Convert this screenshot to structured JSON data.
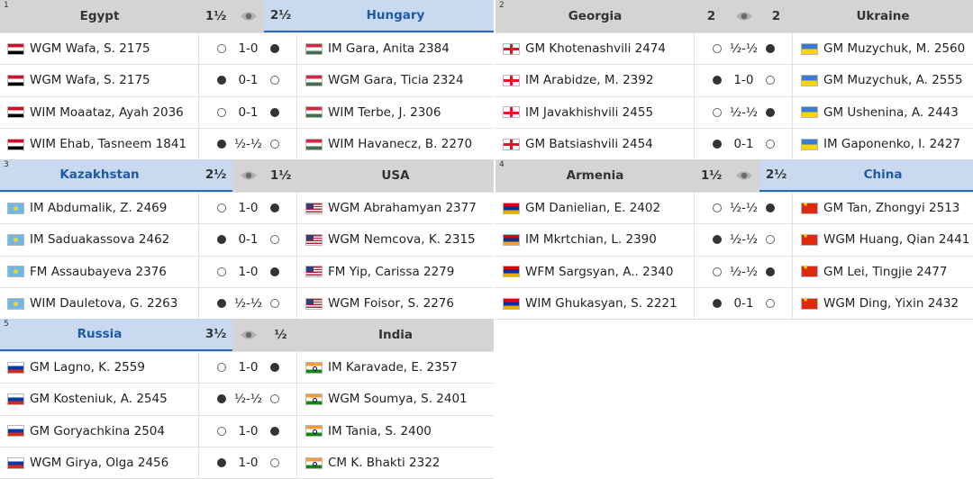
{
  "matches": [
    {
      "number": "1",
      "team1": {
        "name": "Egypt",
        "flag": "egypt",
        "score": "1½",
        "winner": false
      },
      "team2": {
        "name": "Hungary",
        "flag": "hungary",
        "score": "2½",
        "winner": true
      },
      "boards": [
        {
          "p1": "WGM Wafa, S. 2175",
          "p1_color": "white",
          "result": "1-0",
          "p2": "IM Gara, Anita 2384",
          "p2_color": "black"
        },
        {
          "p1": "WGM Wafa, S. 2175",
          "p1_color": "black",
          "result": "0-1",
          "p2": "WGM Gara, Ticia 2324",
          "p2_color": "white"
        },
        {
          "p1": "WIM Moaataz, Ayah 2036",
          "p1_color": "white",
          "result": "0-1",
          "p2": "WIM Terbe, J. 2306",
          "p2_color": "black"
        },
        {
          "p1": "WIM Ehab, Tasneem 1841",
          "p1_color": "black",
          "result": "½-½",
          "p2": "WIM Havanecz, B. 2270",
          "p2_color": "white"
        }
      ]
    },
    {
      "number": "2",
      "team1": {
        "name": "Georgia",
        "flag": "georgia",
        "score": "2",
        "winner": false
      },
      "team2": {
        "name": "Ukraine",
        "flag": "ukraine",
        "score": "2",
        "winner": false
      },
      "boards": [
        {
          "p1": "GM Khotenashvili 2474",
          "p1_color": "white",
          "result": "½-½",
          "p2": "GM Muzychuk, M. 2560",
          "p2_color": "black"
        },
        {
          "p1": "IM Arabidze, M. 2392",
          "p1_color": "black",
          "result": "1-0",
          "p2": "GM Muzychuk, A. 2555",
          "p2_color": "white"
        },
        {
          "p1": "IM Javakhishvili 2455",
          "p1_color": "white",
          "result": "½-½",
          "p2": "GM Ushenina, A. 2443",
          "p2_color": "black"
        },
        {
          "p1": "GM Batsiashvili 2454",
          "p1_color": "black",
          "result": "0-1",
          "p2": "IM Gaponenko, I. 2427",
          "p2_color": "white"
        }
      ]
    },
    {
      "number": "3",
      "team1": {
        "name": "Kazakhstan",
        "flag": "kazakhstan",
        "score": "2½",
        "winner": true
      },
      "team2": {
        "name": "USA",
        "flag": "usa",
        "score": "1½",
        "winner": false
      },
      "boards": [
        {
          "p1": "IM Abdumalik, Z. 2469",
          "p1_color": "white",
          "result": "1-0",
          "p2": "WGM Abrahamyan 2377",
          "p2_color": "black"
        },
        {
          "p1": "IM Saduakassova 2462",
          "p1_color": "black",
          "result": "0-1",
          "p2": "WGM Nemcova, K. 2315",
          "p2_color": "white"
        },
        {
          "p1": "FM Assaubayeva 2376",
          "p1_color": "white",
          "result": "1-0",
          "p2": "FM Yip, Carissa 2279",
          "p2_color": "black"
        },
        {
          "p1": "WIM Dauletova, G. 2263",
          "p1_color": "black",
          "result": "½-½",
          "p2": "WGM Foisor, S. 2276",
          "p2_color": "white"
        }
      ]
    },
    {
      "number": "4",
      "team1": {
        "name": "Armenia",
        "flag": "armenia",
        "score": "1½",
        "winner": false
      },
      "team2": {
        "name": "China",
        "flag": "china",
        "score": "2½",
        "winner": true
      },
      "boards": [
        {
          "p1": "GM Danielian, E. 2402",
          "p1_color": "white",
          "result": "½-½",
          "p2": "GM Tan, Zhongyi 2513",
          "p2_color": "black"
        },
        {
          "p1": "IM Mkrtchian, L. 2390",
          "p1_color": "black",
          "result": "½-½",
          "p2": "WGM Huang, Qian 2441",
          "p2_color": "white"
        },
        {
          "p1": "WFM Sargsyan, A.. 2340",
          "p1_color": "white",
          "result": "½-½",
          "p2": "GM Lei, Tingjie 2477",
          "p2_color": "black"
        },
        {
          "p1": "WIM Ghukasyan, S. 2221",
          "p1_color": "black",
          "result": "0-1",
          "p2": "WGM Ding, Yixin 2432",
          "p2_color": "white"
        }
      ]
    },
    {
      "number": "5",
      "team1": {
        "name": "Russia",
        "flag": "russia",
        "score": "3½",
        "winner": true
      },
      "team2": {
        "name": "India",
        "flag": "india",
        "score": "½",
        "winner": false
      },
      "boards": [
        {
          "p1": "GM Lagno, K. 2559",
          "p1_color": "white",
          "result": "1-0",
          "p2": "IM Karavade, E. 2357",
          "p2_color": "black"
        },
        {
          "p1": "GM Kosteniuk, A. 2545",
          "p1_color": "black",
          "result": "½-½",
          "p2": "WGM Soumya, S. 2401",
          "p2_color": "white"
        },
        {
          "p1": "GM Goryachkina 2504",
          "p1_color": "white",
          "result": "1-0",
          "p2": "IM Tania, S. 2400",
          "p2_color": "black"
        },
        {
          "p1": "WGM Girya, Olga 2456",
          "p1_color": "black",
          "result": "1-0",
          "p2": "CM K. Bhakti 2322",
          "p2_color": "white"
        }
      ]
    }
  ],
  "icons": {
    "eye": "eye-icon",
    "white_piece": "white-circle",
    "black_piece": "black-circle"
  }
}
